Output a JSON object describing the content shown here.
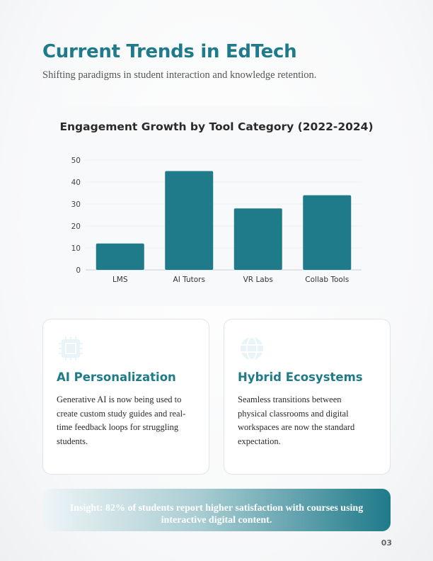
{
  "header": {
    "title": "Current Trends in EdTech",
    "subtitle": "Shifting paradigms in student interaction and knowledge retention."
  },
  "chart_data": {
    "type": "bar",
    "title": "Engagement Growth by Tool Category (2022-2024)",
    "categories": [
      "LMS",
      "AI Tutors",
      "VR Labs",
      "Collab Tools"
    ],
    "values": [
      12,
      45,
      28,
      34
    ],
    "ylim": [
      0,
      50
    ],
    "yticks": [
      0,
      10,
      20,
      30,
      40,
      50
    ],
    "grid": true,
    "color": "#1f7a8a",
    "xlabel": "",
    "ylabel": ""
  },
  "cards": [
    {
      "icon": "cpu-chip-icon",
      "title": "AI Personalization",
      "text": "Generative AI is now being used to create custom study guides and real-time feedback loops for struggling students."
    },
    {
      "icon": "globe-icon",
      "title": "Hybrid Ecosystems",
      "text": "Seamless transitions between physical classrooms and digital workspaces are now the standard expectation."
    }
  ],
  "insight": "Insight: 82% of students report higher satisfaction with courses using interactive digital content.",
  "page_number": "03"
}
